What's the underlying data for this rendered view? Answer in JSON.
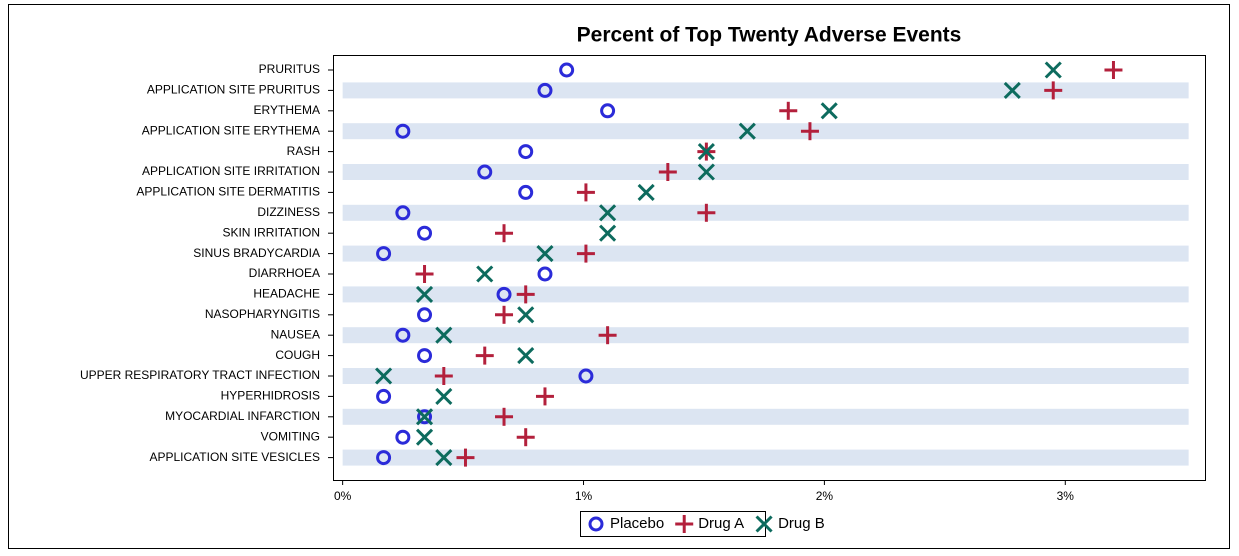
{
  "chart_data": {
    "type": "dot",
    "title": "Percent of Top Twenty Adverse Events",
    "categories": [
      "PRURITUS",
      "APPLICATION SITE PRURITUS",
      "ERYTHEMA",
      "APPLICATION SITE ERYTHEMA",
      "RASH",
      "APPLICATION SITE IRRITATION",
      "APPLICATION SITE DERMATITIS",
      "DIZZINESS",
      "SKIN IRRITATION",
      "SINUS BRADYCARDIA",
      "DIARRHOEA",
      "HEADACHE",
      "NASOPHARYNGITIS",
      "NAUSEA",
      "COUGH",
      "UPPER RESPIRATORY TRACT INFECTION",
      "HYPERHIDROSIS",
      "MYOCARDIAL INFARCTION",
      "VOMITING",
      "APPLICATION SITE VESICLES"
    ],
    "series": [
      {
        "name": "Placebo",
        "color": "#2b2bd9",
        "marker": "circle",
        "values": [
          0.93,
          0.84,
          1.1,
          0.25,
          0.76,
          0.59,
          0.76,
          0.25,
          0.34,
          0.17,
          0.84,
          0.67,
          0.34,
          0.25,
          0.34,
          1.01,
          0.17,
          0.34,
          0.25,
          0.17
        ]
      },
      {
        "name": "Drug A",
        "color": "#b3203c",
        "marker": "plus",
        "values": [
          3.2,
          2.95,
          1.85,
          1.94,
          1.51,
          1.35,
          1.01,
          1.51,
          0.67,
          1.01,
          0.34,
          0.76,
          0.67,
          1.1,
          0.59,
          0.42,
          0.84,
          0.67,
          0.76,
          0.51
        ]
      },
      {
        "name": "Drug B",
        "color": "#0d6b5e",
        "marker": "x",
        "values": [
          2.95,
          2.78,
          2.02,
          1.68,
          1.51,
          1.51,
          1.26,
          1.1,
          1.1,
          0.84,
          0.59,
          0.34,
          0.76,
          0.42,
          0.76,
          0.17,
          0.42,
          0.34,
          0.34,
          0.42
        ]
      }
    ],
    "xlim": [
      -0.04,
      3.58
    ],
    "xticks": [
      {
        "value": 0,
        "label": "0%"
      },
      {
        "value": 1,
        "label": "1%"
      },
      {
        "value": 2,
        "label": "2%"
      },
      {
        "value": 3,
        "label": "3%"
      }
    ],
    "band_color": "#dce5f2"
  }
}
